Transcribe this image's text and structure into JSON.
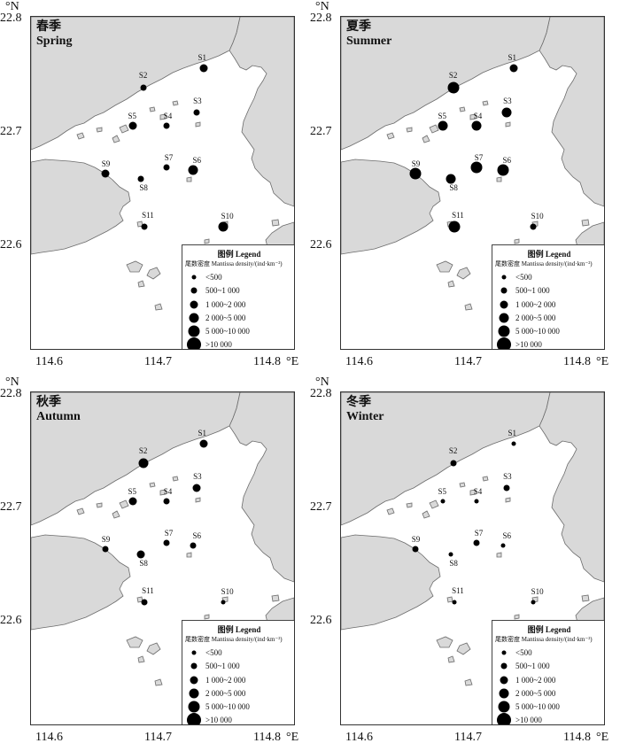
{
  "axes": {
    "lat_unit": "°N",
    "lon_unit": "°E",
    "lat_ticks": [
      "22.8",
      "22.7",
      "22.6"
    ],
    "lon_ticks": [
      "114.6",
      "114.7",
      "114.8"
    ]
  },
  "legend": {
    "title": "图例 Legend",
    "subtitle": "尾数密度 Mantissa density/(ind·km⁻²)",
    "classes": [
      "<500",
      "500~1 000",
      "1 000~2 000",
      "2 000~5 000",
      "5 000~10 000",
      ">10 000"
    ]
  },
  "map_data": {
    "type": "proportional-symbol-map",
    "density_class_index_meaning": "0:<500, 1:500~1 000, 2:1 000~2 000, 3:2 000~5 000, 4:5 000~10 000, 5:>10 000",
    "stations": [
      {
        "id": "S1",
        "lon": 114.737,
        "lat": 22.758
      },
      {
        "id": "S2",
        "lon": 114.682,
        "lat": 22.741
      },
      {
        "id": "S3",
        "lon": 114.731,
        "lat": 22.719
      },
      {
        "id": "S4",
        "lon": 114.703,
        "lat": 22.707
      },
      {
        "id": "S5",
        "lon": 114.672,
        "lat": 22.707
      },
      {
        "id": "S6",
        "lon": 114.728,
        "lat": 22.668
      },
      {
        "id": "S7",
        "lon": 114.703,
        "lat": 22.67
      },
      {
        "id": "S8",
        "lon": 114.68,
        "lat": 22.66
      },
      {
        "id": "S9",
        "lon": 114.647,
        "lat": 22.665
      },
      {
        "id": "S10",
        "lon": 114.755,
        "lat": 22.618
      },
      {
        "id": "S11",
        "lon": 114.683,
        "lat": 22.618
      }
    ],
    "seasons": [
      {
        "label_cn": "春季",
        "label_en": "Spring",
        "density_class": {
          "S1": 2,
          "S2": 1,
          "S3": 1,
          "S4": 1,
          "S5": 2,
          "S6": 3,
          "S7": 1,
          "S8": 1,
          "S9": 2,
          "S10": 3,
          "S11": 1
        }
      },
      {
        "label_cn": "夏季",
        "label_en": "Summer",
        "density_class": {
          "S1": 2,
          "S2": 4,
          "S3": 3,
          "S4": 3,
          "S5": 3,
          "S6": 4,
          "S7": 4,
          "S8": 3,
          "S9": 4,
          "S10": 1,
          "S11": 4
        }
      },
      {
        "label_cn": "秋季",
        "label_en": "Autumn",
        "density_class": {
          "S1": 2,
          "S2": 3,
          "S3": 2,
          "S4": 1,
          "S5": 2,
          "S6": 1,
          "S7": 1,
          "S8": 2,
          "S9": 1,
          "S10": 0,
          "S11": 1
        }
      },
      {
        "label_cn": "冬季",
        "label_en": "Winter",
        "density_class": {
          "S1": 0,
          "S2": 1,
          "S3": 1,
          "S4": 0,
          "S5": 0,
          "S6": 0,
          "S7": 1,
          "S8": 0,
          "S9": 1,
          "S10": 0,
          "S11": 0
        }
      }
    ]
  }
}
